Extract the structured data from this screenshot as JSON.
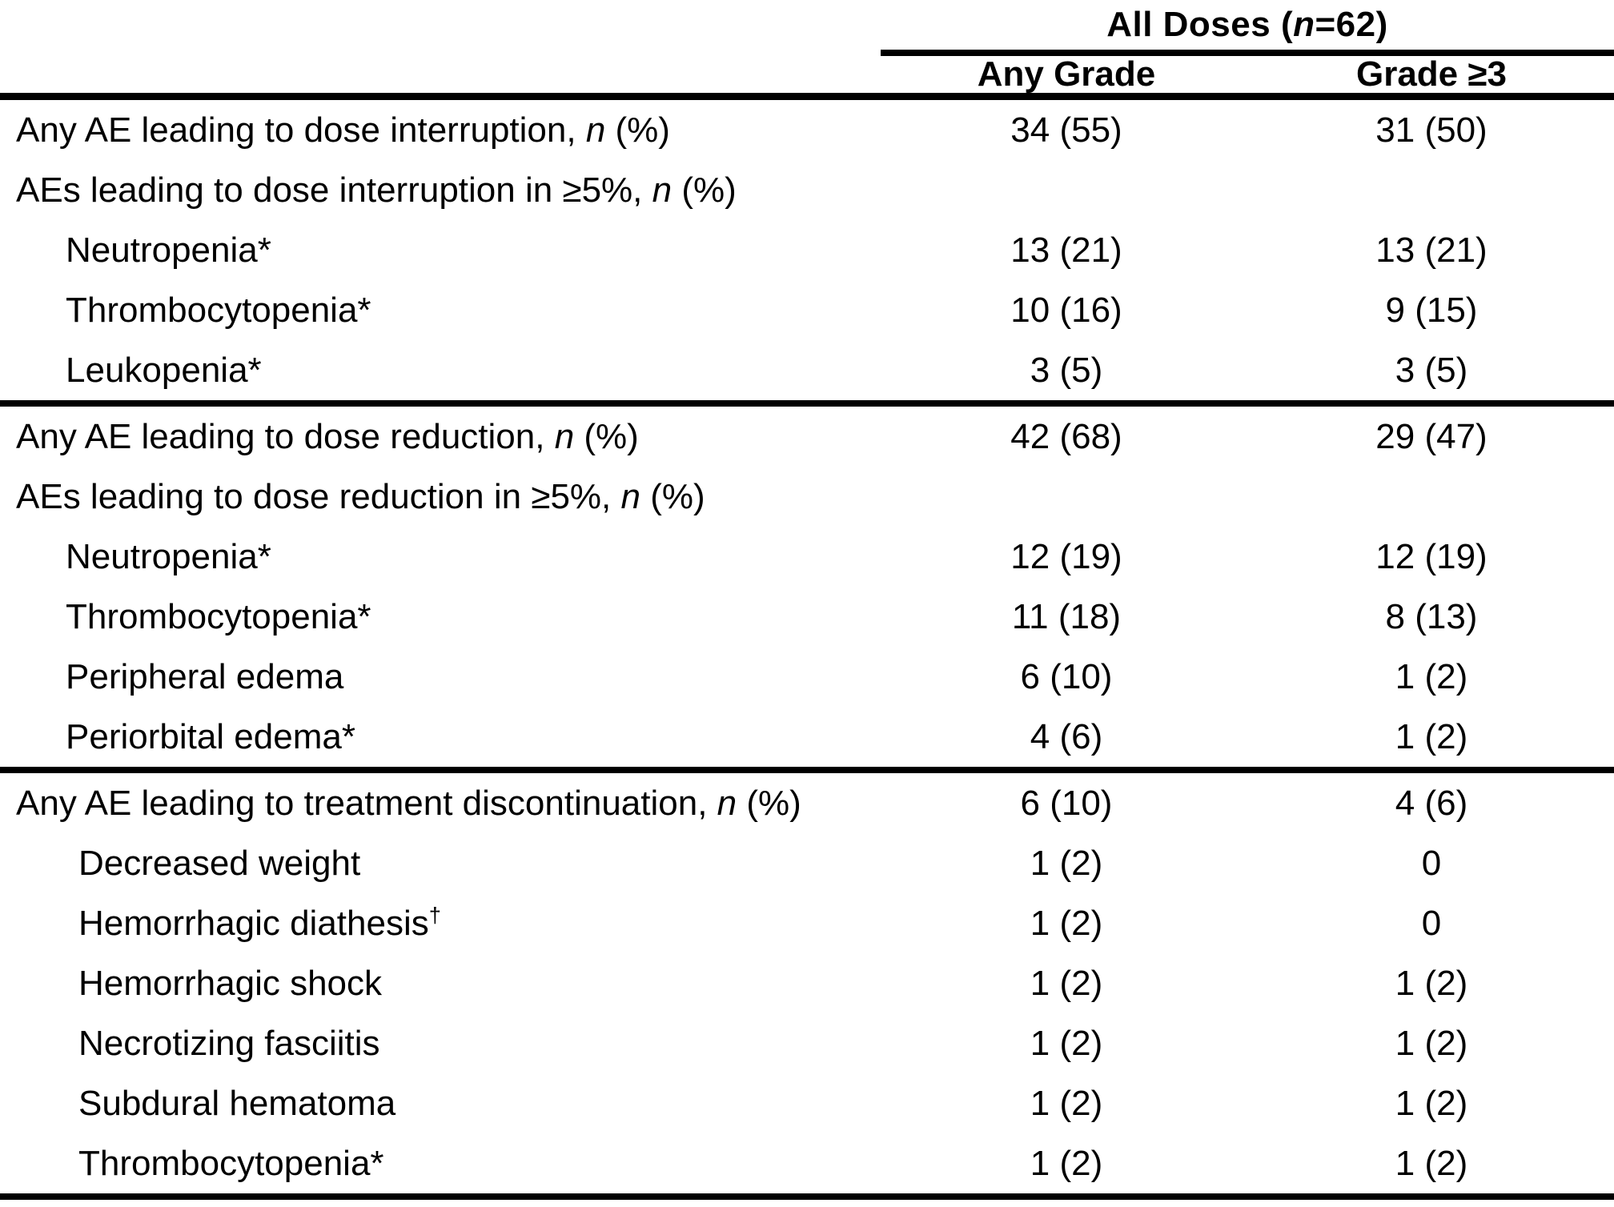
{
  "header": {
    "group_title": {
      "prefix": "All Doses (",
      "n": "n",
      "suffix": "=62)"
    },
    "columns": [
      "Any Grade",
      "Grade ≥3"
    ]
  },
  "rows": [
    {
      "indent": 0,
      "parts": [
        {
          "text": "Any AE leading to dose interruption, "
        },
        {
          "text": "n",
          "italic": true
        },
        {
          "text": " (%)"
        }
      ],
      "values": [
        "34 (55)",
        "31 (50)"
      ],
      "divider_after": false
    },
    {
      "indent": 0,
      "parts": [
        {
          "text": "AEs leading to dose interruption in ≥5%, "
        },
        {
          "text": "n",
          "italic": true
        },
        {
          "text": " (%)"
        }
      ],
      "values": [
        "",
        ""
      ],
      "divider_after": false
    },
    {
      "indent": 1,
      "parts": [
        {
          "text": "Neutropenia*"
        }
      ],
      "values": [
        "13 (21)",
        "13 (21)"
      ],
      "divider_after": false
    },
    {
      "indent": 1,
      "parts": [
        {
          "text": "Thrombocytopenia*"
        }
      ],
      "values": [
        "10 (16)",
        "9 (15)"
      ],
      "divider_after": false
    },
    {
      "indent": 1,
      "parts": [
        {
          "text": "Leukopenia*"
        }
      ],
      "values": [
        "3 (5)",
        "3 (5)"
      ],
      "divider_after": true
    },
    {
      "indent": 0,
      "parts": [
        {
          "text": "Any AE leading to dose reduction, "
        },
        {
          "text": "n",
          "italic": true
        },
        {
          "text": " (%)"
        }
      ],
      "values": [
        "42 (68)",
        "29 (47)"
      ],
      "divider_after": false
    },
    {
      "indent": 0,
      "parts": [
        {
          "text": "AEs leading to dose reduction in ≥5%, "
        },
        {
          "text": "n",
          "italic": true
        },
        {
          "text": " (%)"
        }
      ],
      "values": [
        "",
        ""
      ],
      "divider_after": false
    },
    {
      "indent": 1,
      "parts": [
        {
          "text": "Neutropenia*"
        }
      ],
      "values": [
        "12 (19)",
        "12 (19)"
      ],
      "divider_after": false
    },
    {
      "indent": 1,
      "parts": [
        {
          "text": "Thrombocytopenia*"
        }
      ],
      "values": [
        "11 (18)",
        "8 (13)"
      ],
      "divider_after": false
    },
    {
      "indent": 1,
      "parts": [
        {
          "text": "Peripheral edema"
        }
      ],
      "values": [
        "6 (10)",
        "1 (2)"
      ],
      "divider_after": false
    },
    {
      "indent": 1,
      "parts": [
        {
          "text": "Periorbital edema*"
        }
      ],
      "values": [
        "4 (6)",
        "1 (2)"
      ],
      "divider_after": true
    },
    {
      "indent": 0,
      "parts": [
        {
          "text": "Any AE leading to treatment discontinuation, "
        },
        {
          "text": "n",
          "italic": true
        },
        {
          "text": " (%)"
        }
      ],
      "values": [
        "6 (10)",
        "4 (6)"
      ],
      "divider_after": false
    },
    {
      "indent": 2,
      "parts": [
        {
          "text": "Decreased weight"
        }
      ],
      "values": [
        "1 (2)",
        "0"
      ],
      "divider_after": false
    },
    {
      "indent": 2,
      "parts": [
        {
          "text": "Hemorrhagic diathesis"
        },
        {
          "text": "†",
          "sup": true
        }
      ],
      "values": [
        "1 (2)",
        "0"
      ],
      "divider_after": false
    },
    {
      "indent": 2,
      "parts": [
        {
          "text": "Hemorrhagic shock"
        }
      ],
      "values": [
        "1 (2)",
        "1 (2)"
      ],
      "divider_after": false
    },
    {
      "indent": 2,
      "parts": [
        {
          "text": "Necrotizing fasciitis"
        }
      ],
      "values": [
        "1 (2)",
        "1 (2)"
      ],
      "divider_after": false
    },
    {
      "indent": 2,
      "parts": [
        {
          "text": "Subdural hematoma"
        }
      ],
      "values": [
        "1 (2)",
        "1 (2)"
      ],
      "divider_after": false
    },
    {
      "indent": 2,
      "parts": [
        {
          "text": "Thrombocytopenia*"
        }
      ],
      "values": [
        "1 (2)",
        "1 (2)"
      ],
      "divider_after": false
    }
  ],
  "colors": {
    "text": "#000000",
    "background": "#ffffff",
    "rule": "#000000"
  }
}
